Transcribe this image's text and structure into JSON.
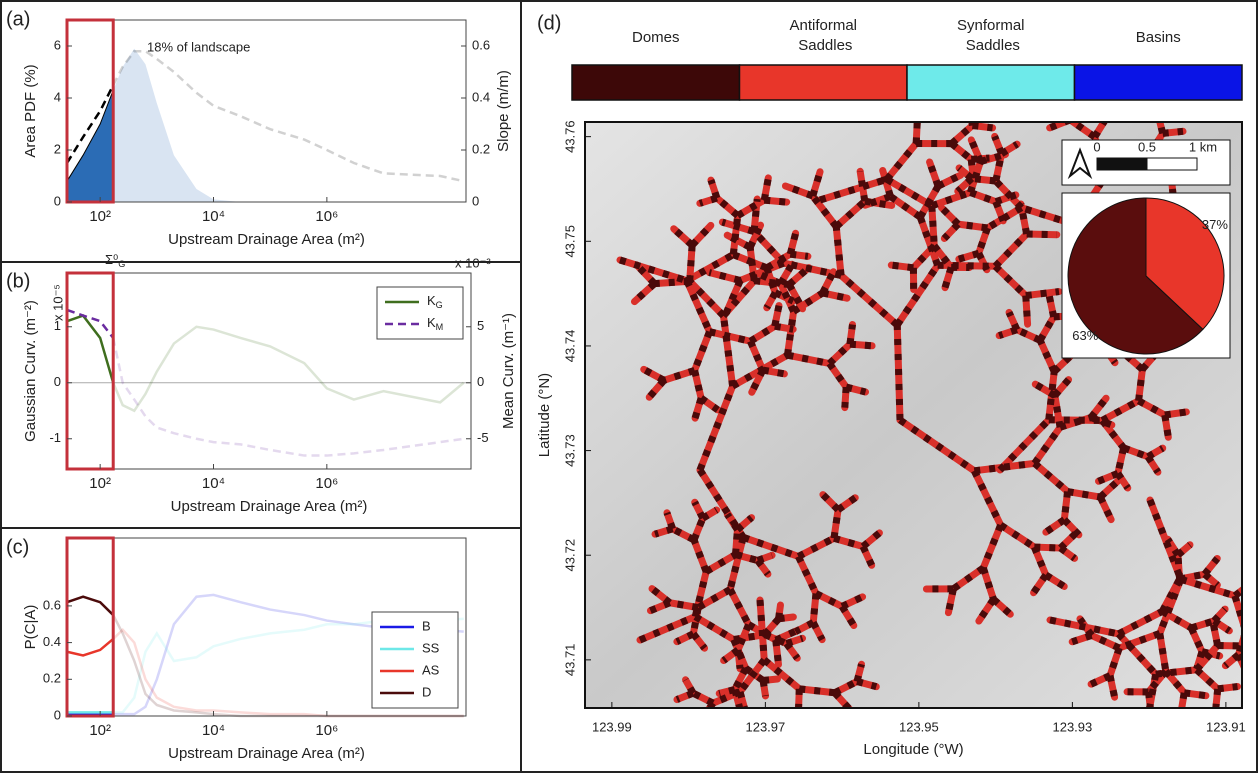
{
  "chart_data": [
    {
      "type": "line",
      "panel": "(a)",
      "annotation": "18% of landscape",
      "xlabel": "Upstream Drainage Area (m²)",
      "ylabel": "Area PDF (%)",
      "y2label": "Slope (m/m)",
      "xscale": "log",
      "xlim": [
        26,
        285000000
      ],
      "xticks": [
        {
          "value": 100,
          "label": "10²"
        },
        {
          "value": 10000,
          "label": "10⁴"
        },
        {
          "value": 1000000,
          "label": "10⁶"
        }
      ],
      "ylim": [
        0,
        7
      ],
      "yticks": [
        0,
        2,
        4,
        6
      ],
      "y2lim": [
        0,
        0.7
      ],
      "y2ticks": [
        0,
        0.2,
        0.4,
        0.6
      ],
      "highlight_xlim": [
        26,
        170
      ],
      "highlight_color": "#c4313b",
      "x": [
        25,
        50,
        100,
        170,
        250,
        400,
        630,
        1000,
        2000,
        5000,
        10000,
        30000,
        100000,
        400000,
        1000000,
        3000000,
        10000000,
        100000000,
        260000000
      ],
      "series": [
        {
          "color": "#2b6cb5",
          "fill": true,
          "values": [
            0.8,
            1.8,
            3.0,
            4.3,
            5.2,
            5.9,
            5.3,
            3.8,
            1.8,
            0.5,
            0.1,
            0,
            0,
            0,
            0,
            0,
            0,
            0,
            0
          ]
        },
        {
          "color": "#000000",
          "dash": true,
          "axis": "y2",
          "values": [
            0.15,
            0.25,
            0.35,
            0.45,
            0.52,
            0.58,
            0.58,
            0.55,
            0.5,
            0.42,
            0.37,
            0.33,
            0.28,
            0.24,
            0.2,
            0.15,
            0.11,
            0.1,
            0.08
          ]
        }
      ]
    },
    {
      "type": "line",
      "panel": "(b)",
      "annotation": "Σ⁰G",
      "xlabel": "Upstream Drainage Area (m²)",
      "ylabel": "Gaussian Curv. (m⁻²)",
      "y2label": "Mean Curv. (m⁻¹)",
      "ymultiplier": "x 10⁻⁵",
      "y2multiplier": "x 10⁻³",
      "y_color": "#3f6e1e",
      "y2_color": "#6a2ca0",
      "xscale": "log",
      "xlim": [
        26,
        350000000
      ],
      "xticks": [
        {
          "value": 100,
          "label": "10²"
        },
        {
          "value": 10000,
          "label": "10⁴"
        },
        {
          "value": 1000000,
          "label": "10⁶"
        }
      ],
      "ylim": [
        -1.54,
        1.96
      ],
      "yticks": [
        -1,
        0,
        1
      ],
      "y2lim": [
        -7.7,
        9.8
      ],
      "y2ticks": [
        -5,
        0,
        5
      ],
      "highlight_xlim": [
        26,
        170
      ],
      "highlight_color": "#c4313b",
      "legend": "upper right",
      "x": [
        25,
        50,
        100,
        170,
        250,
        400,
        630,
        1000,
        2000,
        5000,
        10000,
        30000,
        100000,
        400000,
        1000000,
        3000000,
        10000000,
        100000000,
        260000000
      ],
      "series": [
        {
          "name": "KG",
          "color": "#3f6e1e",
          "values": [
            1.1,
            1.2,
            0.8,
            0,
            -0.4,
            -0.5,
            -0.2,
            0.2,
            0.7,
            1.0,
            0.95,
            0.8,
            0.65,
            0.35,
            -0.1,
            -0.3,
            -0.15,
            -0.35,
            0
          ]
        },
        {
          "name": "KM",
          "color": "#6a2ca0",
          "dash": true,
          "axis": "y2",
          "values": [
            6.5,
            6,
            5.5,
            4,
            0,
            -1.5,
            -3,
            -4,
            -4.5,
            -5,
            -5.3,
            -5.5,
            -6,
            -6.5,
            -6.5,
            -6.3,
            -6,
            -5.3,
            -5
          ]
        }
      ]
    },
    {
      "type": "line",
      "panel": "(c)",
      "xlabel": "Upstream Drainage Area (m²)",
      "ylabel": "P(C|A)",
      "xscale": "log",
      "xlim": [
        26,
        285000000
      ],
      "xticks": [
        {
          "value": 100,
          "label": "10²"
        },
        {
          "value": 10000,
          "label": "10⁴"
        },
        {
          "value": 1000000,
          "label": "10⁶"
        }
      ],
      "ylim": [
        0,
        0.97
      ],
      "yticks": [
        0,
        0.2,
        0.4,
        0.6
      ],
      "highlight_xlim": [
        26,
        170
      ],
      "highlight_color": "#c4313b",
      "legend": "lower right",
      "x": [
        25,
        50,
        100,
        170,
        250,
        400,
        630,
        1000,
        2000,
        5000,
        10000,
        30000,
        100000,
        400000,
        1000000,
        3000000,
        10000000,
        100000000,
        260000000
      ],
      "series": [
        {
          "name": "B",
          "color": "#1a1ae6",
          "values": [
            0.01,
            0.01,
            0.01,
            0.01,
            0.01,
            0.01,
            0.05,
            0.2,
            0.5,
            0.65,
            0.66,
            0.62,
            0.58,
            0.55,
            0.52,
            0.5,
            0.48,
            0.47,
            0.46
          ]
        },
        {
          "name": "SS",
          "color": "#6ee8e8",
          "values": [
            0.02,
            0.02,
            0.02,
            0.02,
            0.02,
            0.1,
            0.35,
            0.45,
            0.3,
            0.32,
            0.38,
            0.42,
            0.45,
            0.47,
            0.5,
            0.5,
            0.52,
            0.52,
            0.53
          ]
        },
        {
          "name": "AS",
          "color": "#e8362a",
          "values": [
            0.35,
            0.33,
            0.36,
            0.42,
            0.47,
            0.4,
            0.2,
            0.1,
            0.05,
            0.03,
            0.03,
            0.02,
            0.01,
            0.01,
            0,
            0,
            0,
            0,
            0
          ]
        },
        {
          "name": "D",
          "color": "#4b0b0b",
          "values": [
            0.62,
            0.65,
            0.62,
            0.55,
            0.45,
            0.3,
            0.12,
            0.06,
            0.03,
            0.02,
            0.01,
            0,
            0,
            0,
            0,
            0,
            0,
            0,
            0
          ]
        }
      ]
    },
    {
      "type": "map",
      "panel": "(d)",
      "xlabel": "Longitude (°W)",
      "ylabel": "Latitude (°N)",
      "xlim": [
        123.9935,
        123.9079
      ],
      "xticks": [
        123.99,
        123.97,
        123.95,
        123.93,
        123.91
      ],
      "ylim": [
        43.7054,
        43.7614
      ],
      "yticks": [
        43.71,
        43.72,
        43.73,
        43.74,
        43.75,
        43.76
      ],
      "classes": [
        {
          "name": "Domes",
          "color": "#3d0808"
        },
        {
          "name": "Antiformal Saddles",
          "color": "#e8362a"
        },
        {
          "name": "Synformal Saddles",
          "color": "#6eeaea"
        },
        {
          "name": "Basins",
          "color": "#0a14e6"
        }
      ],
      "scale_bar": [
        "0",
        "0.5",
        "1 km"
      ]
    },
    {
      "type": "pie",
      "values": [
        37,
        63
      ],
      "value_labels": [
        "37%",
        "63%"
      ],
      "colors": [
        "#e8362a",
        "#5a0d0d"
      ]
    }
  ]
}
